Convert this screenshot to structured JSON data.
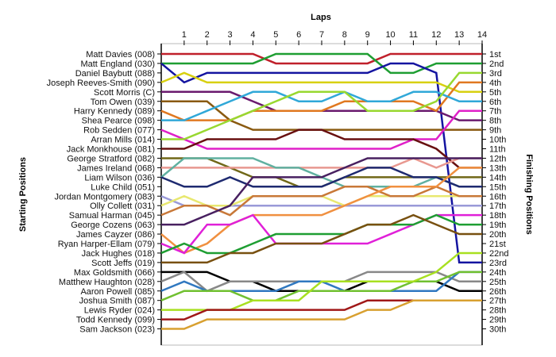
{
  "chart_data": {
    "type": "line",
    "subtype": "lap-position-chart",
    "x_axis_title": "Laps",
    "left_axis_title": "Starting Positions",
    "right_axis_title": "Finishing Positions",
    "x": [
      0,
      1,
      2,
      3,
      4,
      5,
      6,
      7,
      8,
      9,
      10,
      11,
      12,
      13,
      14
    ],
    "x_tick_labels": [
      "1",
      "2",
      "3",
      "4",
      "5",
      "6",
      "7",
      "8",
      "9",
      "10",
      "11",
      "12",
      "13",
      "14"
    ],
    "y_range": [
      1,
      30
    ],
    "y_inverted": true,
    "grid": false,
    "finishing_labels": [
      "1st",
      "2nd",
      "3rd",
      "4th",
      "5th",
      "6th",
      "7th",
      "8th",
      "9th",
      "10th",
      "11th",
      "12th",
      "13th",
      "14th",
      "15th",
      "16th",
      "17th",
      "18th",
      "19th",
      "20th",
      "21st",
      "22nd",
      "23rd",
      "24th",
      "25th",
      "26th",
      "27th",
      "28th",
      "29th",
      "30th"
    ],
    "series": [
      {
        "name": "Matt Davies (008)",
        "color": "#c0202b",
        "values": [
          1,
          1,
          1,
          1,
          1,
          2,
          2,
          2,
          2,
          2,
          1,
          1,
          1,
          1,
          1
        ]
      },
      {
        "name": "Matt England (030)",
        "color": "#1e9e32",
        "values": [
          2,
          2,
          2,
          2,
          2,
          1,
          1,
          1,
          1,
          1,
          3,
          3,
          2,
          2,
          2
        ]
      },
      {
        "name": "Daniel Baybutt (088)",
        "color": "#1414a0",
        "values": [
          2,
          4,
          3,
          3,
          3,
          3,
          3,
          3,
          3,
          3,
          2,
          2,
          3,
          23,
          23
        ]
      },
      {
        "name": "Joseph Reeves-Smith (090)",
        "color": "#d8d010",
        "values": [
          4,
          3,
          4,
          4,
          4,
          4,
          4,
          4,
          4,
          4,
          4,
          4,
          4,
          5,
          5
        ]
      },
      {
        "name": "Scott Morris (C)",
        "color": "#6a1a6e",
        "values": [
          5,
          5,
          5,
          5,
          6,
          7,
          7,
          7,
          7,
          7,
          7,
          7,
          7,
          8,
          8
        ]
      },
      {
        "name": "Tom Owen (039)",
        "color": "#8a5a10",
        "values": [
          6,
          6,
          6,
          8,
          9,
          9,
          9,
          9,
          9,
          9,
          9,
          9,
          9,
          9,
          9
        ]
      },
      {
        "name": "Harry Kennedy (089)",
        "color": "#e07820",
        "values": [
          7,
          8,
          8,
          8,
          7,
          7,
          7,
          7,
          6,
          6,
          6,
          6,
          7,
          4,
          4
        ]
      },
      {
        "name": "Shea Pearce (098)",
        "color": "#30a8d8",
        "values": [
          8,
          8,
          7,
          6,
          5,
          5,
          6,
          6,
          5,
          6,
          6,
          5,
          5,
          6,
          6
        ]
      },
      {
        "name": "Rob Sedden (077)",
        "color": "#e020c8",
        "values": [
          9,
          10,
          11,
          11,
          11,
          11,
          11,
          11,
          11,
          11,
          11,
          10,
          10,
          7,
          7
        ]
      },
      {
        "name": "Arran Mills (014)",
        "color": "#98d830",
        "values": [
          10,
          10,
          9,
          8,
          7,
          6,
          5,
          5,
          5,
          7,
          7,
          7,
          6,
          3,
          3
        ]
      },
      {
        "name": "Jack Monkhouse (081)",
        "color": "#681010",
        "values": [
          11,
          11,
          10,
          10,
          10,
          10,
          9,
          9,
          10,
          10,
          10,
          10,
          11,
          13,
          13
        ]
      },
      {
        "name": "George Stratford (082)",
        "color": "#706818",
        "values": [
          12,
          12,
          12,
          13,
          14,
          14,
          15,
          15,
          14,
          14,
          14,
          14,
          14,
          14,
          14
        ]
      },
      {
        "name": "James Ireland (068)",
        "color": "#e89890",
        "values": [
          13,
          13,
          13,
          13,
          13,
          13,
          13,
          13,
          13,
          13,
          13,
          12,
          13,
          12,
          12
        ]
      },
      {
        "name": "Liam Wilson (036)",
        "color": "#60b0a0",
        "values": [
          14,
          12,
          12,
          12,
          12,
          13,
          13,
          14,
          15,
          15,
          15,
          15,
          14,
          15,
          15
        ]
      },
      {
        "name": "Luke Child (051)",
        "color": "#1e2a70",
        "values": [
          14,
          15,
          15,
          14,
          15,
          15,
          15,
          15,
          14,
          13,
          13,
          14,
          14,
          15,
          15
        ]
      },
      {
        "name": "Jordan Montgomery (083)",
        "color": "#9a9ad8",
        "values": [
          16,
          17,
          17,
          17,
          17,
          17,
          17,
          17,
          17,
          17,
          17,
          17,
          17,
          17,
          17
        ]
      },
      {
        "name": "Olly Collett (031)",
        "color": "#e8e870",
        "values": [
          17,
          16,
          17,
          17,
          16,
          16,
          16,
          16,
          17,
          16,
          16,
          16,
          16,
          16,
          16
        ]
      },
      {
        "name": "Samual Harman (045)",
        "color": "#c87838",
        "values": [
          18,
          17,
          17,
          18,
          16,
          16,
          16,
          16,
          15,
          15,
          16,
          16,
          15,
          16,
          16
        ]
      },
      {
        "name": "George Cozens (063)",
        "color": "#482060",
        "values": [
          19,
          19,
          18,
          17,
          14,
          14,
          14,
          14,
          13,
          12,
          12,
          12,
          12,
          12,
          12
        ]
      },
      {
        "name": "James Cayzer (086)",
        "color": "#f09040",
        "values": [
          20,
          22,
          21,
          19,
          18,
          18,
          18,
          18,
          17,
          16,
          15,
          15,
          15,
          13,
          13
        ]
      },
      {
        "name": "Ryan Harper-Ellam (079)",
        "color": "#e020d8",
        "values": [
          21,
          22,
          19,
          19,
          18,
          21,
          21,
          21,
          21,
          21,
          20,
          19,
          18,
          18,
          18
        ]
      },
      {
        "name": "Jack Hughes (018)",
        "color": "#1e9e32",
        "values": [
          22,
          21,
          22,
          22,
          21,
          20,
          20,
          20,
          20,
          19,
          19,
          19,
          18,
          19,
          19
        ]
      },
      {
        "name": "Scott Jeffs (019)",
        "color": "#785010",
        "values": [
          23,
          23,
          23,
          22,
          22,
          21,
          21,
          21,
          20,
          19,
          19,
          18,
          19,
          20,
          20
        ]
      },
      {
        "name": "Max Goldsmith (066)",
        "color": "#000000",
        "values": [
          24,
          24,
          24,
          25,
          25,
          26,
          26,
          26,
          26,
          25,
          25,
          25,
          25,
          26,
          26
        ]
      },
      {
        "name": "Matthew Haughton (028)",
        "color": "#888888",
        "values": [
          25,
          24,
          26,
          25,
          25,
          25,
          25,
          25,
          25,
          24,
          24,
          24,
          24,
          25,
          25
        ]
      },
      {
        "name": "Aaron Powell (085)",
        "color": "#3078c0",
        "values": [
          26,
          25,
          26,
          26,
          26,
          26,
          25,
          25,
          26,
          26,
          26,
          26,
          26,
          24,
          24
        ]
      },
      {
        "name": "Joshua Smith (087)",
        "color": "#70c030",
        "values": [
          27,
          26,
          26,
          26,
          27,
          27,
          26,
          26,
          26,
          26,
          26,
          25,
          25,
          24,
          24
        ]
      },
      {
        "name": "Lewis Ryder (024)",
        "color": "#a8e020",
        "values": [
          28,
          28,
          28,
          28,
          27,
          27,
          27,
          25,
          25,
          25,
          25,
          25,
          24,
          22,
          22
        ]
      },
      {
        "name": "Todd Kennedy (099)",
        "color": "#a01818",
        "values": [
          29,
          29,
          28,
          28,
          28,
          28,
          28,
          28,
          28,
          27,
          27,
          27,
          27,
          27,
          27
        ]
      },
      {
        "name": "Sam Jackson (023)",
        "color": "#d8a030",
        "values": [
          30,
          30,
          29,
          29,
          29,
          29,
          29,
          29,
          29,
          28,
          28,
          27,
          27,
          27,
          27
        ]
      }
    ]
  }
}
